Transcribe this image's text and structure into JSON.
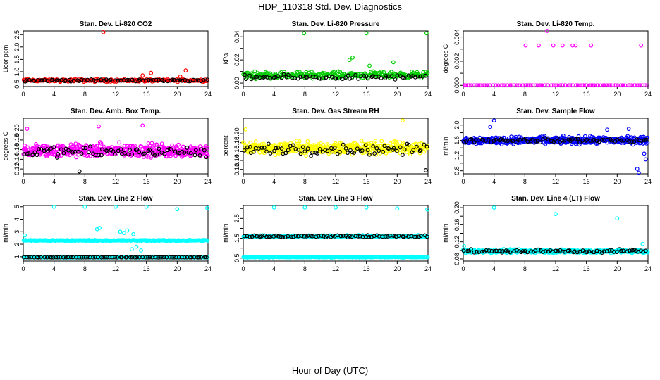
{
  "figure": {
    "title": "HDP_110318  Std. Dev. Diagnostics",
    "xlabel": "Hour of Day (UTC)"
  },
  "colors": {
    "black": "#000000",
    "red": "#ff0000",
    "green": "#00cc00",
    "magenta": "#ff00ff",
    "yellow": "#ffff00",
    "blue": "#0000ff",
    "cyan": "#00ffff"
  },
  "chart_data": [
    {
      "type": "scatter",
      "title": "Stan. Dev. Li-820 CO2",
      "xlabel": "",
      "ylabel": "Licor ppm",
      "xlim": [
        0,
        24
      ],
      "ylim": [
        0.4,
        2.65
      ],
      "xticks": [
        0,
        4,
        8,
        12,
        16,
        20,
        24
      ],
      "yticks": [
        0.5,
        1.0,
        1.5,
        2.0,
        2.5
      ],
      "ytick_labels": [
        "0.5",
        "1.0",
        "1.5",
        "2.0",
        "2.5"
      ],
      "series": [
        {
          "name": "main",
          "color": "red",
          "n": 200,
          "base": 0.65,
          "spread": 0.08,
          "outliers": [
            [
              10.4,
              2.6
            ],
            [
              16.6,
              0.95
            ],
            [
              20.4,
              0.8
            ],
            [
              21.1,
              1.05
            ],
            [
              15.5,
              0.85
            ]
          ]
        },
        {
          "name": "black",
          "color": "black",
          "n": 70,
          "base": 0.65,
          "spread": 0.06,
          "outliers": []
        }
      ]
    },
    {
      "type": "scatter",
      "title": "Stan. Dev. Li-820 Pressure",
      "xlabel": "",
      "ylabel": "kPa",
      "xlim": [
        0,
        24
      ],
      "ylim": [
        -0.003,
        0.045
      ],
      "xticks": [
        0,
        4,
        8,
        12,
        16,
        20,
        24
      ],
      "yticks": [
        0.0,
        0.01,
        0.02,
        0.03,
        0.04
      ],
      "ytick_labels": [
        "0.00",
        "",
        "0.02",
        "",
        "0.04"
      ],
      "series": [
        {
          "name": "main",
          "color": "green",
          "n": 260,
          "base": 0.007,
          "spread": 0.004,
          "outliers": [
            [
              7.9,
              0.043
            ],
            [
              13.8,
              0.02
            ],
            [
              14.2,
              0.022
            ],
            [
              16.0,
              0.043
            ],
            [
              23.8,
              0.043
            ],
            [
              19.5,
              0.018
            ],
            [
              16.4,
              0.015
            ]
          ]
        },
        {
          "name": "black",
          "color": "black",
          "n": 70,
          "base": 0.005,
          "spread": 0.003,
          "outliers": []
        }
      ]
    },
    {
      "type": "scatter",
      "title": "Stan. Dev. Li-820 Temp.",
      "xlabel": "",
      "ylabel": "degrees C",
      "xlim": [
        0,
        24
      ],
      "ylim": [
        -0.0001,
        0.0045
      ],
      "xticks": [
        0,
        4,
        8,
        12,
        16,
        20,
        24
      ],
      "yticks": [
        0.0,
        0.001,
        0.002,
        0.003,
        0.004
      ],
      "ytick_labels": [
        "0.000",
        "",
        "0.002",
        "",
        "0.004"
      ],
      "series": [
        {
          "name": "main",
          "color": "magenta",
          "n": 0,
          "base": 0,
          "spread": 0,
          "outliers": [
            [
              8.1,
              0.0033
            ],
            [
              9.8,
              0.0033
            ],
            [
              10.9,
              0.0045
            ],
            [
              11.7,
              0.0033
            ],
            [
              12.9,
              0.0033
            ],
            [
              14.2,
              0.0033
            ],
            [
              14.6,
              0.0033
            ],
            [
              16.6,
              0.0033
            ],
            [
              23.1,
              0.0033
            ],
            [
              0.2,
              0.0
            ]
          ]
        },
        {
          "name": "black",
          "color": "magenta",
          "n": 96,
          "base": 0.0,
          "spread": 0.0,
          "outliers": []
        }
      ]
    },
    {
      "type": "scatter",
      "title": "Stan. Dev. Amb. Box Temp.",
      "xlabel": "",
      "ylabel": "degrees C",
      "xlim": [
        0,
        24
      ],
      "ylim": [
        0.11,
        0.225
      ],
      "xticks": [
        0,
        4,
        8,
        12,
        16,
        20,
        24
      ],
      "yticks": [
        0.12,
        0.14,
        0.16,
        0.18,
        0.2
      ],
      "ytick_labels": [
        "0.12",
        "0.14",
        "0.16",
        "0.18",
        "0.20"
      ],
      "series": [
        {
          "name": "main",
          "color": "magenta",
          "n": 420,
          "base": 0.158,
          "spread": 0.02,
          "outliers": [
            [
              0.5,
              0.203
            ],
            [
              15.5,
              0.21
            ],
            [
              9.8,
              0.208
            ]
          ]
        },
        {
          "name": "black",
          "color": "black",
          "n": 75,
          "base": 0.155,
          "spread": 0.016,
          "outliers": [
            [
              7.3,
              0.115
            ]
          ]
        }
      ]
    },
    {
      "type": "scatter",
      "title": "Stan. Dev. Gas Stream RH",
      "xlabel": "",
      "ylabel": "percent",
      "xlim": [
        0,
        24
      ],
      "ylim": [
        0.11,
        0.235
      ],
      "xticks": [
        0,
        4,
        8,
        12,
        16,
        20,
        24
      ],
      "yticks": [
        0.12,
        0.14,
        0.16,
        0.18,
        0.2
      ],
      "ytick_labels": [
        "0.12",
        "0.14",
        "0.16",
        "0.18",
        "0.20"
      ],
      "series": [
        {
          "name": "main",
          "color": "yellow",
          "n": 420,
          "base": 0.168,
          "spread": 0.02,
          "outliers": [
            [
              20.7,
              0.23
            ],
            [
              0.3,
              0.21
            ]
          ]
        },
        {
          "name": "black",
          "color": "black",
          "n": 75,
          "base": 0.165,
          "spread": 0.017,
          "outliers": [
            [
              23.7,
              0.118
            ]
          ]
        }
      ]
    },
    {
      "type": "scatter",
      "title": "Stan. Dev. Sample Flow",
      "xlabel": "",
      "ylabel": "ml/min",
      "xlim": [
        0,
        24
      ],
      "ylim": [
        0.72,
        2.18
      ],
      "xticks": [
        0,
        4,
        8,
        12,
        16,
        20,
        24
      ],
      "yticks": [
        0.8,
        1.0,
        1.2,
        1.4,
        1.6,
        1.8,
        2.0
      ],
      "ytick_labels": [
        "0.8",
        "",
        "1.2",
        "",
        "1.6",
        "",
        "2.0"
      ],
      "series": [
        {
          "name": "main",
          "color": "blue",
          "n": 420,
          "base": 1.6,
          "spread": 0.14,
          "outliers": [
            [
              4.0,
              2.12
            ],
            [
              3.5,
              1.95
            ],
            [
              22.6,
              0.85
            ],
            [
              22.8,
              0.75
            ],
            [
              21.5,
              1.9
            ],
            [
              18.7,
              1.88
            ],
            [
              23.5,
              1.25
            ],
            [
              23.7,
              1.1
            ]
          ]
        },
        {
          "name": "black",
          "color": "black",
          "n": 75,
          "base": 1.6,
          "spread": 0.08,
          "outliers": []
        }
      ]
    },
    {
      "type": "scatter",
      "title": "Stan. Dev. Line 2 Flow",
      "xlabel": "",
      "ylabel": "ml/min",
      "xlim": [
        0,
        24
      ],
      "ylim": [
        0.65,
        5.1
      ],
      "xticks": [
        0,
        4,
        8,
        12,
        16,
        20,
        24
      ],
      "yticks": [
        1,
        2,
        3,
        4,
        5
      ],
      "ytick_labels": [
        "1",
        "2",
        "3",
        "4",
        "5"
      ],
      "series": [
        {
          "name": "upper",
          "color": "cyan",
          "n": 260,
          "base": 2.3,
          "spread": 0.06,
          "outliers": [
            [
              0.2,
              2.7
            ],
            [
              4.0,
              5.0
            ],
            [
              8.0,
              5.0
            ],
            [
              12.0,
              5.0
            ],
            [
              16.0,
              5.0
            ],
            [
              20.0,
              4.8
            ],
            [
              23.9,
              4.9
            ],
            [
              9.6,
              3.2
            ],
            [
              9.9,
              3.3
            ],
            [
              12.6,
              3.0
            ],
            [
              13.1,
              2.9
            ],
            [
              13.5,
              3.1
            ],
            [
              14.3,
              2.8
            ],
            [
              14.7,
              1.8
            ],
            [
              15.3,
              1.5
            ],
            [
              14.1,
              1.6
            ]
          ]
        },
        {
          "name": "lower",
          "color": "cyan",
          "n": 260,
          "base": 0.95,
          "spread": 0.03,
          "outliers": []
        },
        {
          "name": "black",
          "color": "black",
          "n": 75,
          "base": 0.95,
          "spread": 0.02,
          "outliers": []
        }
      ]
    },
    {
      "type": "scatter",
      "title": "Stan. Dev. Line 3 Flow",
      "xlabel": "",
      "ylabel": "ml/min",
      "xlim": [
        0,
        24
      ],
      "ylim": [
        0.35,
        3.15
      ],
      "xticks": [
        0,
        4,
        8,
        12,
        16,
        20,
        24
      ],
      "yticks": [
        0.5,
        1.0,
        1.5,
        2.0,
        2.5,
        3.0
      ],
      "ytick_labels": [
        "0.5",
        "",
        "1.5",
        "",
        "2.5",
        ""
      ],
      "series": [
        {
          "name": "upper",
          "color": "cyan",
          "n": 260,
          "base": 1.6,
          "spread": 0.07,
          "outliers": [
            [
              4.0,
              3.05
            ],
            [
              8.0,
              3.05
            ],
            [
              12.0,
              3.05
            ],
            [
              16.0,
              3.05
            ],
            [
              20.0,
              3.0
            ],
            [
              23.9,
              2.95
            ]
          ]
        },
        {
          "name": "lower",
          "color": "cyan",
          "n": 260,
          "base": 0.55,
          "spread": 0.03,
          "outliers": []
        },
        {
          "name": "black",
          "color": "black",
          "n": 75,
          "base": 1.6,
          "spread": 0.08,
          "outliers": []
        }
      ]
    },
    {
      "type": "scatter",
      "title": "Stan. Dev. Line 4 (LT) Flow",
      "xlabel": "",
      "ylabel": "ml/min",
      "xlim": [
        0,
        24
      ],
      "ylim": [
        0.075,
        0.205
      ],
      "xticks": [
        0,
        4,
        8,
        12,
        16,
        20,
        24
      ],
      "yticks": [
        0.08,
        0.1,
        0.12,
        0.14,
        0.16,
        0.18,
        0.2
      ],
      "ytick_labels": [
        "0.08",
        "",
        "0.12",
        "",
        "0.16",
        "",
        "0.20"
      ],
      "series": [
        {
          "name": "main",
          "color": "cyan",
          "n": 420,
          "base": 0.098,
          "spread": 0.006,
          "outliers": [
            [
              4.0,
              0.2
            ],
            [
              12.0,
              0.185
            ],
            [
              20.0,
              0.175
            ],
            [
              23.3,
              0.115
            ],
            [
              0.1,
              0.11
            ]
          ]
        },
        {
          "name": "black",
          "color": "black",
          "n": 75,
          "base": 0.098,
          "spread": 0.005,
          "outliers": []
        }
      ]
    }
  ]
}
